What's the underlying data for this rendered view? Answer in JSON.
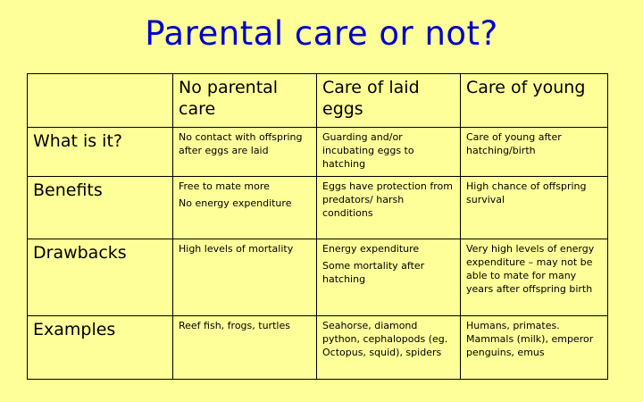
{
  "title": "Parental care or not?",
  "table": {
    "columns": [
      "",
      "No parental care",
      "Care of laid eggs",
      "Care of young"
    ],
    "rows": [
      {
        "label": "What is it?",
        "cells": [
          [
            "No contact with offspring after eggs are laid"
          ],
          [
            "Guarding and/or incubating eggs to hatching"
          ],
          [
            "Care of young after hatching/birth"
          ]
        ]
      },
      {
        "label": "Benefits",
        "cells": [
          [
            "Free to mate more",
            "No energy expenditure"
          ],
          [
            "Eggs have protection from predators/ harsh conditions"
          ],
          [
            "High chance of offspring survival"
          ]
        ]
      },
      {
        "label": "Drawbacks",
        "cells": [
          [
            "High levels of mortality"
          ],
          [
            "Energy expenditure",
            "Some mortality after hatching"
          ],
          [
            "Very high levels of energy expenditure – may not be able to mate for many years after offspring birth"
          ]
        ]
      },
      {
        "label": "Examples",
        "cells": [
          [
            "Reef fish, frogs, turtles"
          ],
          [
            "Seahorse, diamond python, cephalopods (eg. Octopus, squid), spiders"
          ],
          [
            "Humans, primates. Mammals (milk), emperor penguins, emus"
          ]
        ]
      }
    ]
  }
}
